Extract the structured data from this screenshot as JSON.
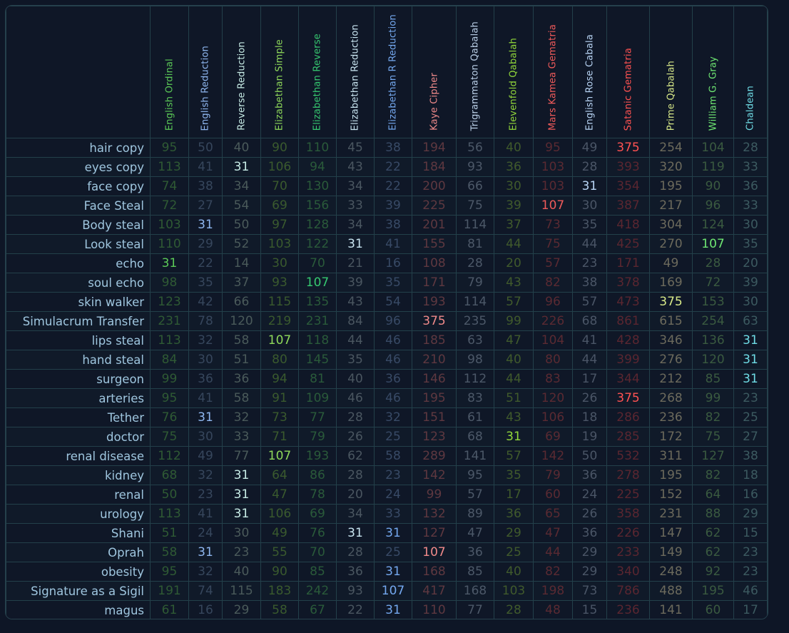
{
  "table": {
    "columns": [
      {
        "label": "English Ordinal",
        "color": "#5bc957",
        "dim": "#2f5a34"
      },
      {
        "label": "English Reduction",
        "color": "#8fb7f0",
        "dim": "#36465c"
      },
      {
        "label": "Reverse Reduction",
        "color": "#c7ece6",
        "dim": "#4a5a5a"
      },
      {
        "label": "Elizabethan Simple",
        "color": "#8ed85a",
        "dim": "#3a5a2e"
      },
      {
        "label": "Elizabethan Reverse",
        "color": "#36c970",
        "dim": "#2a5a3a"
      },
      {
        "label": "Elizabethan Reduction",
        "color": "#c8e4f0",
        "dim": "#4a5660"
      },
      {
        "label": "Elizabethan R Reduction",
        "color": "#74a8ef",
        "dim": "#384a66"
      },
      {
        "label": "Kaye Cipher",
        "color": "#f08a8a",
        "dim": "#5e3840"
      },
      {
        "label": "Trigrammaton Qabalah",
        "color": "#b9cee6",
        "dim": "#4c5868"
      },
      {
        "label": "Elevenfold Qabalah",
        "color": "#92d83a",
        "dim": "#405a2c"
      },
      {
        "label": "Mars Kamea Gematria",
        "color": "#ef5a5a",
        "dim": "#5a2a32"
      },
      {
        "label": "English Rose Cabala",
        "color": "#b8d4f4",
        "dim": "#4a5566"
      },
      {
        "label": "Satanic Gematria",
        "color": "#ff5252",
        "dim": "#5a2630"
      },
      {
        "label": "Prime Qabalah",
        "color": "#d7e888",
        "dim": "#6c6a5c"
      },
      {
        "label": "William G. Gray",
        "color": "#6ee672",
        "dim": "#3a5a40"
      },
      {
        "label": "Chaldean",
        "color": "#6fdde6",
        "dim": "#3c5a60"
      }
    ],
    "rows": [
      {
        "label": "hair copy",
        "values": [
          "95",
          "50",
          "40",
          "90",
          "110",
          "45",
          "38",
          "194",
          "56",
          "40",
          "95",
          "49",
          "375",
          "254",
          "104",
          "28"
        ],
        "hl": [
          12
        ]
      },
      {
        "label": "eyes copy",
        "values": [
          "113",
          "41",
          "31",
          "106",
          "94",
          "43",
          "22",
          "184",
          "93",
          "36",
          "103",
          "28",
          "393",
          "320",
          "119",
          "33"
        ],
        "hl": [
          2
        ]
      },
      {
        "label": "face copy",
        "values": [
          "74",
          "38",
          "34",
          "70",
          "130",
          "34",
          "22",
          "200",
          "66",
          "30",
          "103",
          "31",
          "354",
          "195",
          "90",
          "36"
        ],
        "hl": [
          11
        ]
      },
      {
        "label": "Face Steal",
        "values": [
          "72",
          "27",
          "54",
          "69",
          "156",
          "33",
          "39",
          "225",
          "75",
          "39",
          "107",
          "30",
          "387",
          "217",
          "96",
          "33"
        ],
        "hl": [
          10
        ]
      },
      {
        "label": "Body steal",
        "values": [
          "103",
          "31",
          "50",
          "97",
          "128",
          "34",
          "38",
          "201",
          "114",
          "37",
          "73",
          "35",
          "418",
          "304",
          "124",
          "30"
        ],
        "hl": [
          1
        ]
      },
      {
        "label": "Look steal",
        "values": [
          "110",
          "29",
          "52",
          "103",
          "122",
          "31",
          "41",
          "155",
          "81",
          "44",
          "75",
          "44",
          "425",
          "270",
          "107",
          "35"
        ],
        "hl": [
          5,
          14
        ]
      },
      {
        "label": "echo",
        "values": [
          "31",
          "22",
          "14",
          "30",
          "70",
          "21",
          "16",
          "108",
          "28",
          "20",
          "57",
          "23",
          "171",
          "49",
          "28",
          "20"
        ],
        "hl": [
          0
        ]
      },
      {
        "label": "soul echo",
        "values": [
          "98",
          "35",
          "37",
          "93",
          "107",
          "39",
          "35",
          "171",
          "79",
          "43",
          "82",
          "38",
          "378",
          "169",
          "72",
          "39"
        ],
        "hl": [
          4
        ]
      },
      {
        "label": "skin walker",
        "values": [
          "123",
          "42",
          "66",
          "115",
          "135",
          "43",
          "54",
          "193",
          "114",
          "57",
          "96",
          "57",
          "473",
          "375",
          "153",
          "30"
        ],
        "hl": [
          13
        ]
      },
      {
        "label": "Simulacrum Transfer",
        "values": [
          "231",
          "78",
          "120",
          "219",
          "231",
          "84",
          "96",
          "375",
          "235",
          "99",
          "226",
          "68",
          "861",
          "615",
          "254",
          "63"
        ],
        "hl": [
          7
        ]
      },
      {
        "label": "lips steal",
        "values": [
          "113",
          "32",
          "58",
          "107",
          "118",
          "44",
          "46",
          "185",
          "63",
          "47",
          "104",
          "41",
          "428",
          "346",
          "136",
          "31"
        ],
        "hl": [
          3,
          15
        ]
      },
      {
        "label": "hand steal",
        "values": [
          "84",
          "30",
          "51",
          "80",
          "145",
          "35",
          "46",
          "210",
          "98",
          "40",
          "80",
          "44",
          "399",
          "276",
          "120",
          "31"
        ],
        "hl": [
          15
        ]
      },
      {
        "label": "surgeon",
        "values": [
          "99",
          "36",
          "36",
          "94",
          "81",
          "40",
          "36",
          "146",
          "112",
          "44",
          "83",
          "17",
          "344",
          "212",
          "85",
          "31"
        ],
        "hl": [
          15
        ]
      },
      {
        "label": "arteries",
        "values": [
          "95",
          "41",
          "58",
          "91",
          "109",
          "46",
          "46",
          "195",
          "83",
          "51",
          "120",
          "26",
          "375",
          "268",
          "99",
          "23"
        ],
        "hl": [
          12
        ]
      },
      {
        "label": "Tether",
        "values": [
          "76",
          "31",
          "32",
          "73",
          "77",
          "28",
          "32",
          "151",
          "61",
          "43",
          "106",
          "18",
          "286",
          "236",
          "82",
          "25"
        ],
        "hl": [
          1
        ]
      },
      {
        "label": "doctor",
        "values": [
          "75",
          "30",
          "33",
          "71",
          "79",
          "26",
          "25",
          "123",
          "68",
          "31",
          "69",
          "19",
          "285",
          "172",
          "75",
          "27"
        ],
        "hl": [
          9
        ]
      },
      {
        "label": "renal disease",
        "values": [
          "112",
          "49",
          "77",
          "107",
          "193",
          "62",
          "58",
          "289",
          "141",
          "57",
          "142",
          "50",
          "532",
          "311",
          "127",
          "38"
        ],
        "hl": [
          3
        ]
      },
      {
        "label": "kidney",
        "values": [
          "68",
          "32",
          "31",
          "64",
          "86",
          "28",
          "23",
          "142",
          "95",
          "35",
          "79",
          "36",
          "278",
          "195",
          "82",
          "18"
        ],
        "hl": [
          2
        ]
      },
      {
        "label": "renal",
        "values": [
          "50",
          "23",
          "31",
          "47",
          "78",
          "20",
          "24",
          "99",
          "57",
          "17",
          "60",
          "24",
          "225",
          "152",
          "64",
          "16"
        ],
        "hl": [
          2
        ]
      },
      {
        "label": "urology",
        "values": [
          "113",
          "41",
          "31",
          "106",
          "69",
          "34",
          "33",
          "132",
          "89",
          "36",
          "65",
          "26",
          "358",
          "231",
          "88",
          "29"
        ],
        "hl": [
          2
        ]
      },
      {
        "label": "Shani",
        "values": [
          "51",
          "24",
          "30",
          "49",
          "76",
          "31",
          "31",
          "127",
          "47",
          "29",
          "47",
          "36",
          "226",
          "147",
          "62",
          "15"
        ],
        "hl": [
          5,
          6
        ]
      },
      {
        "label": "Oprah",
        "values": [
          "58",
          "31",
          "23",
          "55",
          "70",
          "28",
          "25",
          "107",
          "36",
          "25",
          "44",
          "29",
          "233",
          "149",
          "62",
          "23"
        ],
        "hl": [
          1,
          7
        ]
      },
      {
        "label": "obesity",
        "values": [
          "95",
          "32",
          "40",
          "90",
          "85",
          "36",
          "31",
          "168",
          "85",
          "40",
          "82",
          "29",
          "340",
          "248",
          "92",
          "23"
        ],
        "hl": [
          6
        ]
      },
      {
        "label": "Signature as a Sigil",
        "values": [
          "191",
          "74",
          "115",
          "183",
          "242",
          "93",
          "107",
          "417",
          "168",
          "103",
          "198",
          "73",
          "786",
          "488",
          "195",
          "46"
        ],
        "hl": [
          6
        ]
      },
      {
        "label": "magus",
        "values": [
          "61",
          "16",
          "29",
          "58",
          "67",
          "22",
          "31",
          "110",
          "77",
          "28",
          "48",
          "15",
          "236",
          "141",
          "60",
          "17"
        ],
        "hl": [
          6
        ]
      }
    ]
  }
}
